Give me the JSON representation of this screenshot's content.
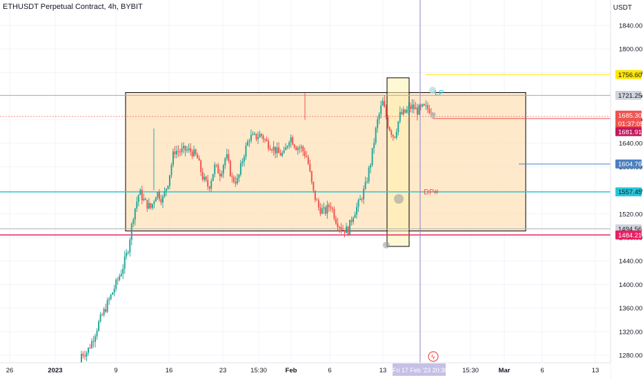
{
  "header": {
    "symbol_title": "ETHUSDT Perpetual Contract, 4h, BYBIT",
    "unit": "USDT"
  },
  "colors": {
    "up": "#26a69a",
    "down": "#ef5350",
    "range_fill": "#fde2b8",
    "cyan_line": "#26c6da",
    "pink_line": "#e91e63",
    "yellow_line": "#ffe600",
    "blue_label": "#4a7fc1",
    "crosshair": "#8a80c8"
  },
  "chart_data": {
    "type": "candlestick",
    "ylim": [
      1265,
      1870
    ],
    "y_ticks": [
      1280,
      1320,
      1360,
      1400,
      1440,
      1480,
      1520,
      1560,
      1600,
      1640,
      1680,
      1720,
      1760,
      1800,
      1840
    ],
    "x_ticks": [
      "26",
      "2023",
      "9",
      "16",
      "23",
      "15:30",
      "Feb",
      "6",
      "13",
      "Fri 17 Feb '23 20:30",
      "15:30",
      "Mar",
      "6",
      "13"
    ],
    "price_labels": [
      {
        "text": "1756.60",
        "role": "yellow-level"
      },
      {
        "text": "1721.25",
        "role": "grey-level"
      },
      {
        "text": "1685.30",
        "role": "last-price"
      },
      {
        "text": "01:37:05",
        "role": "countdown"
      },
      {
        "text": "1681.91",
        "role": "mark-price"
      },
      {
        "text": "1604.76",
        "role": "blue-level"
      },
      {
        "text": "1557.45",
        "role": "cyan-level"
      },
      {
        "text": "1494.56",
        "role": "grey-level"
      },
      {
        "text": "1484.21",
        "role": "pink-level"
      }
    ],
    "annotations": [
      {
        "text": "LP",
        "price": 1728
      },
      {
        "text": "DP#",
        "price": 1560
      }
    ],
    "range_box": {
      "top": 1726,
      "bottom": 1491
    },
    "pivots": [
      [
        1265,
        1300
      ],
      [
        1282,
        1290
      ],
      [
        1275,
        1340
      ],
      [
        1320,
        1350
      ],
      [
        1338,
        1375
      ],
      [
        1362,
        1395
      ],
      [
        1388,
        1415
      ],
      [
        1410,
        1440
      ],
      [
        1435,
        1480
      ],
      [
        1480,
        1560
      ],
      [
        1535,
        1580
      ],
      [
        1548,
        1530
      ],
      [
        1515,
        1545
      ],
      [
        1540,
        1575
      ],
      [
        1528,
        1560
      ],
      [
        1540,
        1612
      ],
      [
        1590,
        1665
      ],
      [
        1632,
        1620
      ],
      [
        1612,
        1645
      ],
      [
        1625,
        1628
      ],
      [
        1600,
        1630
      ],
      [
        1605,
        1555
      ],
      [
        1545,
        1585
      ],
      [
        1575,
        1625
      ],
      [
        1580,
        1598
      ],
      [
        1590,
        1650
      ],
      [
        1598,
        1560
      ],
      [
        1552,
        1600
      ],
      [
        1590,
        1650
      ],
      [
        1615,
        1685
      ],
      [
        1655,
        1645
      ],
      [
        1630,
        1680
      ],
      [
        1660,
        1622
      ],
      [
        1622,
        1645
      ],
      [
        1640,
        1605
      ],
      [
        1610,
        1632
      ],
      [
        1640,
        1665
      ],
      [
        1640,
        1630
      ],
      [
        1618,
        1645
      ],
      [
        1630,
        1600
      ],
      [
        1570,
        1545
      ],
      [
        1540,
        1520
      ],
      [
        1535,
        1510
      ],
      [
        1525,
        1548
      ],
      [
        1510,
        1508
      ],
      [
        1500,
        1490
      ],
      [
        1478,
        1505
      ],
      [
        1510,
        1532
      ],
      [
        1530,
        1548
      ],
      [
        1555,
        1575
      ],
      [
        1580,
        1640
      ],
      [
        1655,
        1690
      ],
      [
        1695,
        1725
      ],
      [
        1690,
        1650
      ],
      [
        1655,
        1645
      ],
      [
        1675,
        1700
      ],
      [
        1695,
        1690
      ],
      [
        1695,
        1710
      ],
      [
        1700,
        1690
      ],
      [
        1695,
        1705
      ],
      [
        1700,
        1696
      ],
      [
        1705,
        1685
      ]
    ]
  }
}
